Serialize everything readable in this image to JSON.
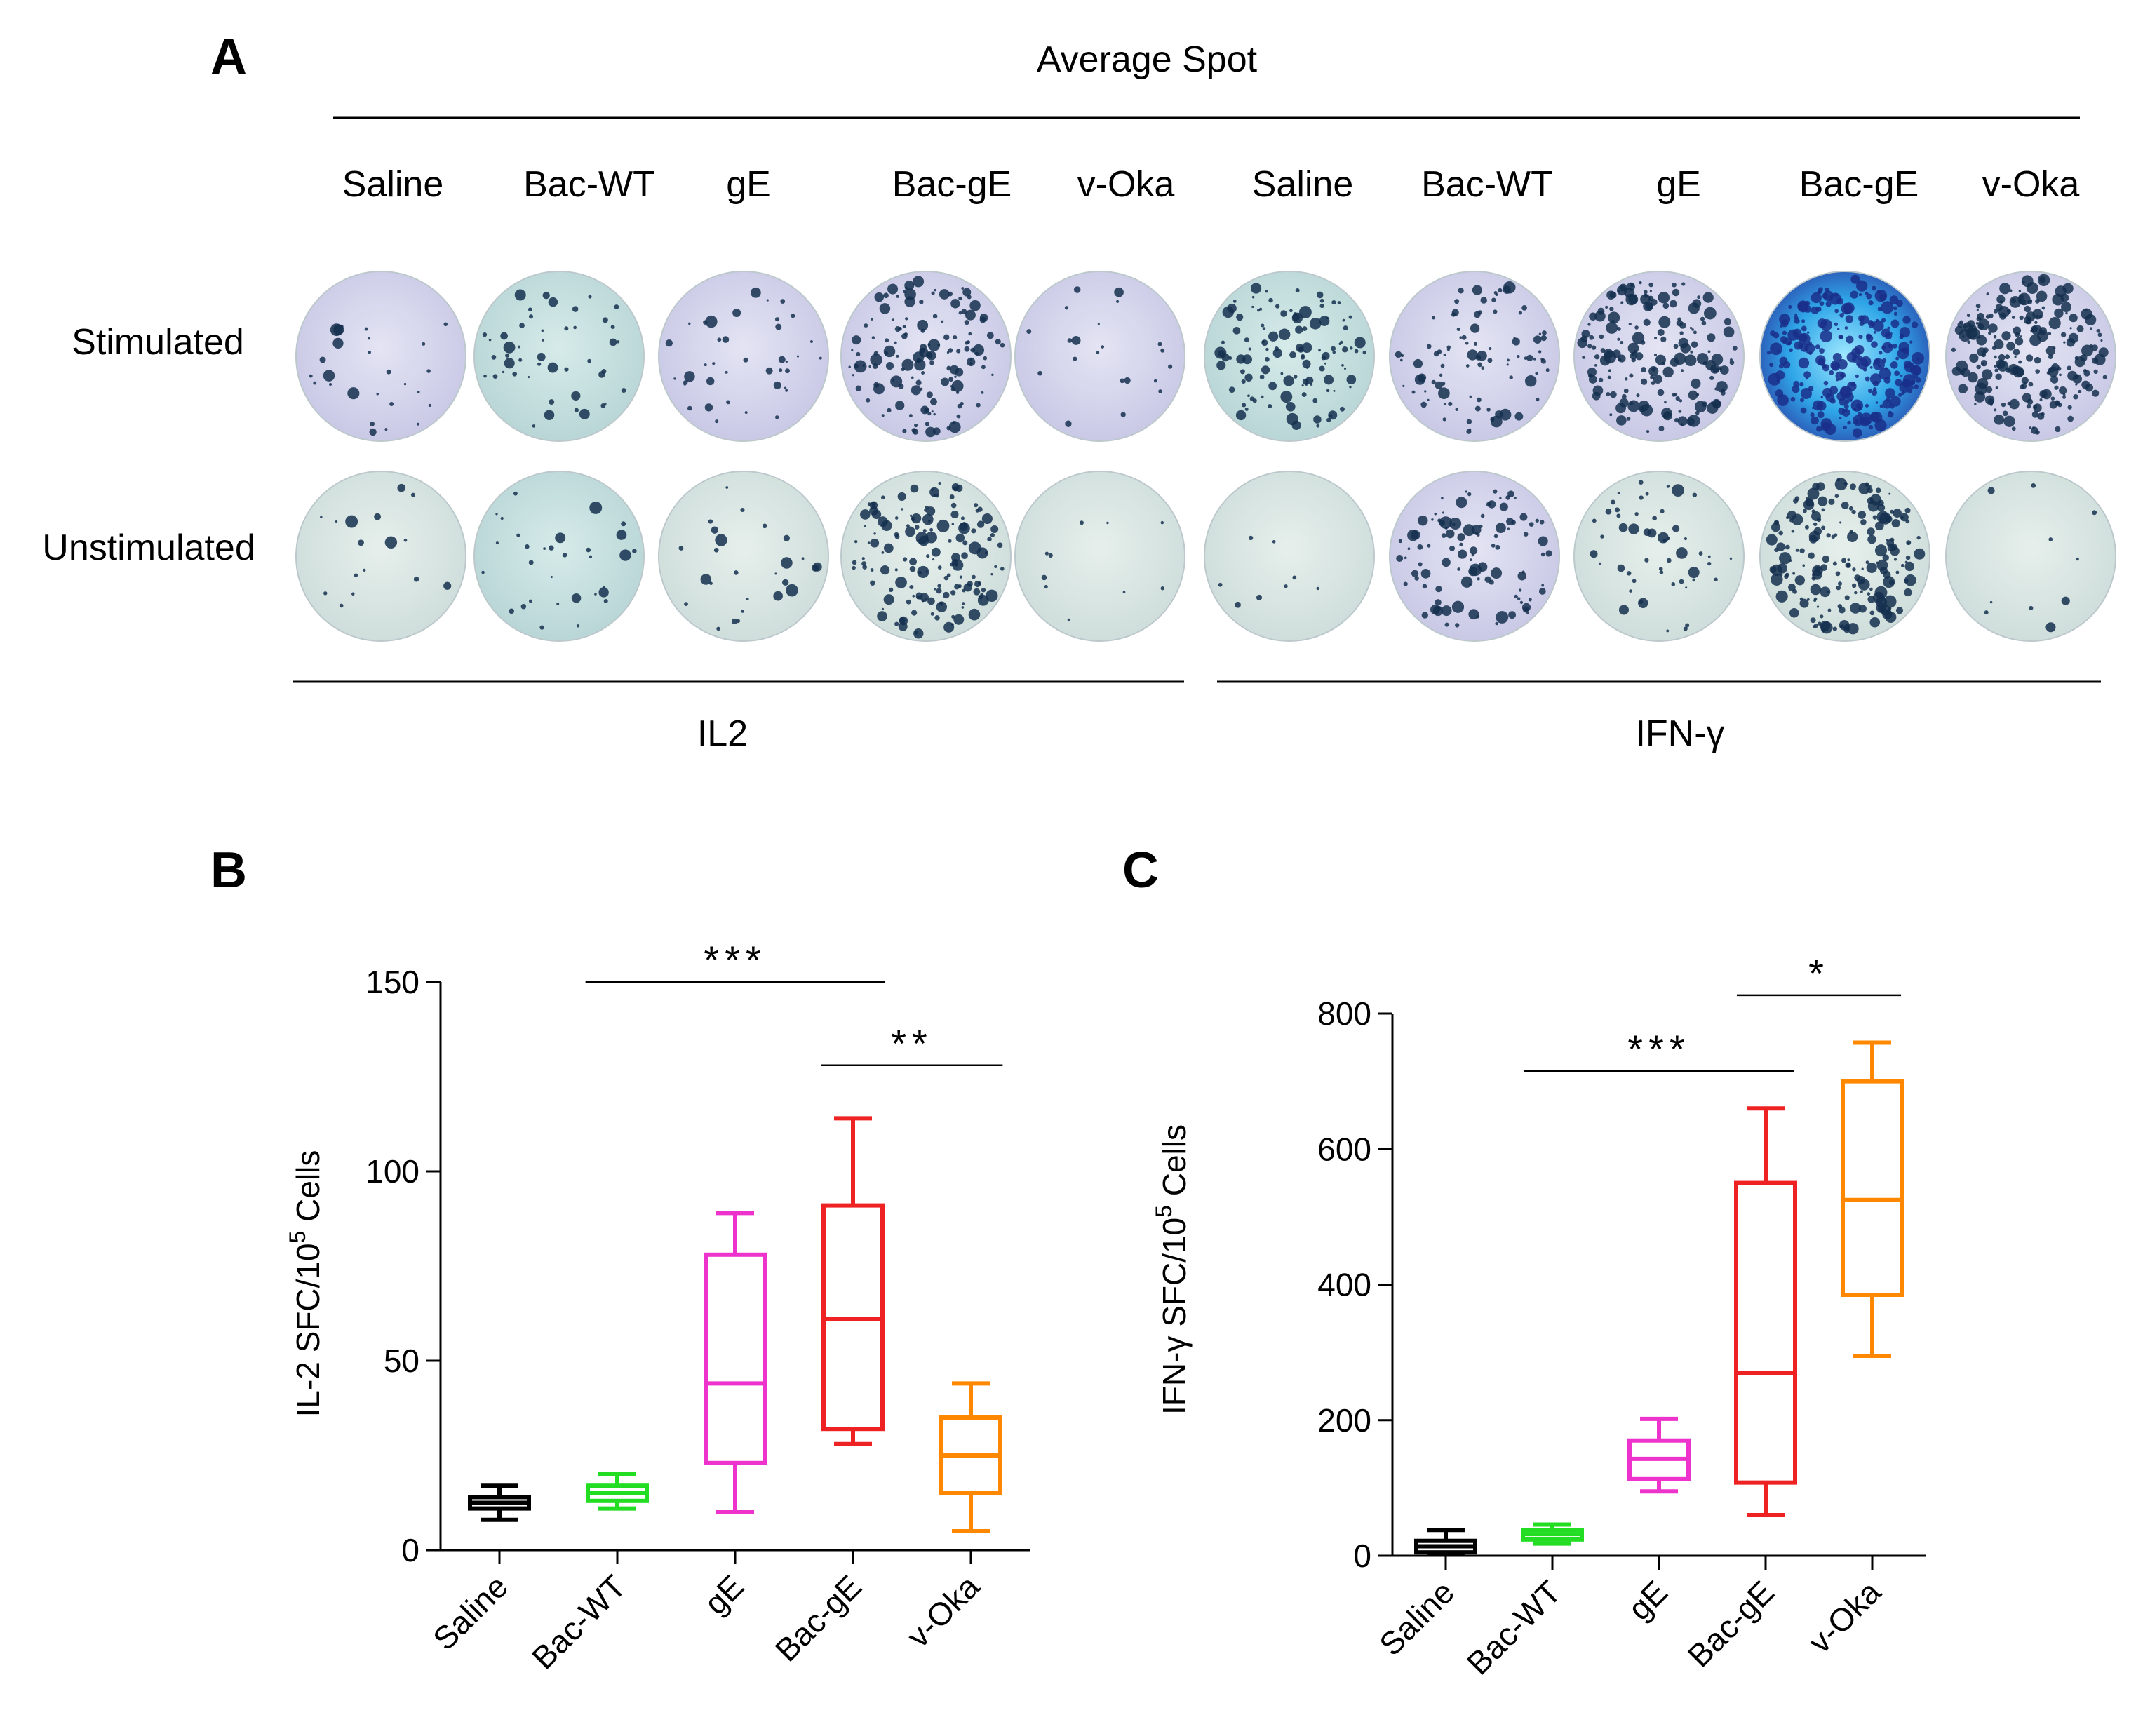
{
  "panel_a": {
    "letter": "A",
    "header": "Average  Spot",
    "columns": [
      "Saline",
      "Bac-WT",
      "gE",
      "Bac-gE",
      "v-Oka",
      "Saline",
      "Bac-WT",
      "gE",
      "Bac-gE",
      "v-Oka"
    ],
    "rows": [
      "Stimulated",
      "Unstimulated"
    ],
    "groups": [
      "IL2",
      "IFN-γ"
    ],
    "well_spot_density": [
      [
        0.1,
        0.18,
        0.15,
        0.55,
        0.08,
        0.45,
        0.35,
        0.7,
        1.0,
        0.85
      ],
      [
        0.06,
        0.12,
        0.1,
        0.6,
        0.04,
        0.03,
        0.4,
        0.2,
        0.75,
        0.04
      ]
    ]
  },
  "colors": {
    "Saline": "#000000",
    "Bac-WT": "#22dd22",
    "gE": "#ee33cc",
    "Bac-gE": "#ee2222",
    "v-Oka": "#ff8800"
  },
  "chart_data": [
    {
      "type": "box",
      "letter": "B",
      "ylabel": "IL-2 SFC/10⁵ Cells",
      "ylabel_main": "IL-2 SFC/10",
      "ylabel_sup": "5",
      "ylabel_tail": " Cells",
      "ylim": [
        0,
        150
      ],
      "yticks": [
        "0",
        "50",
        "100",
        "150"
      ],
      "ytick_values": [
        0,
        50,
        100,
        150
      ],
      "categories": [
        "Saline",
        "Bac-WT",
        "gE",
        "Bac-gE",
        "v-Oka"
      ],
      "boxes": [
        {
          "min": 8,
          "q1": 11,
          "median": 12.5,
          "q3": 14,
          "max": 17
        },
        {
          "min": 11,
          "q1": 13,
          "median": 15,
          "q3": 17,
          "max": 20
        },
        {
          "min": 10,
          "q1": 23,
          "median": 44,
          "q3": 78,
          "max": 89
        },
        {
          "min": 28,
          "q1": 32,
          "median": 61,
          "q3": 91,
          "max": 114
        },
        {
          "min": 5,
          "q1": 15,
          "median": 25,
          "q3": 35,
          "max": 44
        }
      ],
      "significance": [
        {
          "from": 1,
          "to": 3,
          "label": "***",
          "y": 150
        },
        {
          "from": 3,
          "to": 4,
          "label": "**",
          "y": 128
        }
      ]
    },
    {
      "type": "box",
      "letter": "C",
      "ylabel": "IFN-γ SFC/10⁵ Cells",
      "ylabel_main": "IFN-γ SFC/10",
      "ylabel_sup": "5",
      "ylabel_tail": " Cells",
      "ylim": [
        0,
        800
      ],
      "yticks": [
        "0",
        "200",
        "400",
        "600",
        "800"
      ],
      "ytick_values": [
        0,
        200,
        400,
        600,
        800
      ],
      "categories": [
        "Saline",
        "Bac-WT",
        "gE",
        "Bac-gE",
        "v-Oka"
      ],
      "boxes": [
        {
          "min": 2,
          "q1": 5,
          "median": 14,
          "q3": 22,
          "max": 38
        },
        {
          "min": 18,
          "q1": 24,
          "median": 32,
          "q3": 38,
          "max": 46
        },
        {
          "min": 95,
          "q1": 113,
          "median": 143,
          "q3": 170,
          "max": 202
        },
        {
          "min": 60,
          "q1": 108,
          "median": 270,
          "q3": 550,
          "max": 660
        },
        {
          "min": 295,
          "q1": 385,
          "median": 525,
          "q3": 700,
          "max": 757
        }
      ],
      "significance": [
        {
          "from": 1,
          "to": 3,
          "label": "***",
          "y": 715
        },
        {
          "from": 3,
          "to": 4,
          "label": "*",
          "y": 827
        }
      ]
    }
  ]
}
